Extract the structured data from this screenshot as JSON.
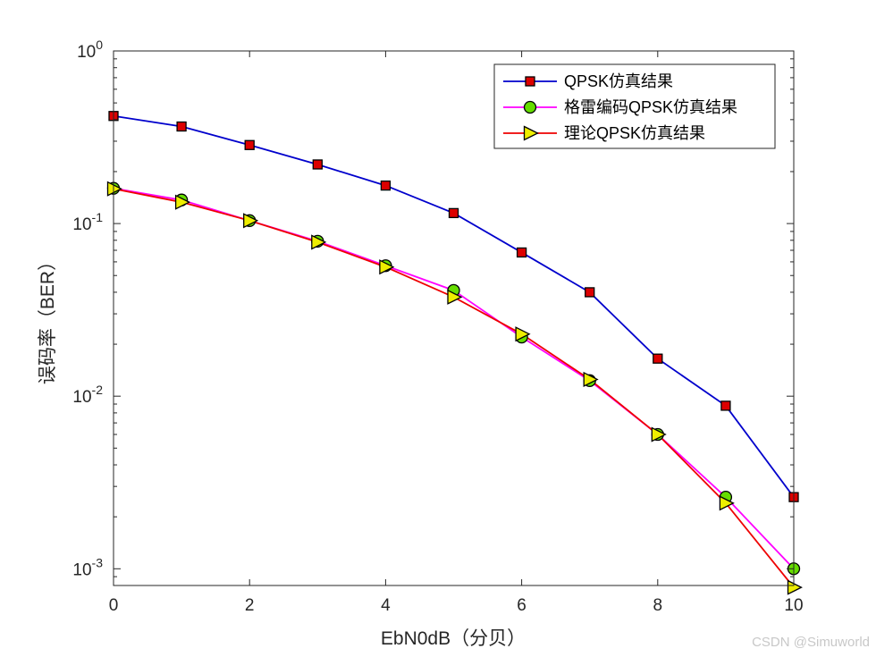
{
  "watermark": "CSDN @Simuworld",
  "chart_data": {
    "type": "line",
    "title": "",
    "xlabel": "EbN0dB（分贝）",
    "ylabel": "误码率（BER）",
    "xlim": [
      0,
      10
    ],
    "ylim": [
      0.0008,
      1
    ],
    "yscale": "log",
    "xticks": [
      0,
      2,
      4,
      6,
      8,
      10
    ],
    "yticks": [
      {
        "value": 1,
        "base": "10",
        "exp": "0"
      },
      {
        "value": 0.1,
        "base": "10",
        "exp": "-1"
      },
      {
        "value": 0.01,
        "base": "10",
        "exp": "-2"
      },
      {
        "value": 0.001,
        "base": "10",
        "exp": "-3"
      }
    ],
    "grid": false,
    "legend_position": "top-right",
    "x": [
      0,
      1,
      2,
      3,
      4,
      5,
      6,
      7,
      8,
      9,
      10
    ],
    "series": [
      {
        "name": "QPSK仿真结果",
        "values": [
          0.42,
          0.365,
          0.285,
          0.22,
          0.166,
          0.115,
          0.068,
          0.04,
          0.0165,
          0.0088,
          0.0026
        ],
        "color": "#0000cc",
        "marker": "square",
        "marker_color": "#dd0000"
      },
      {
        "name": "格雷编码QPSK仿真结果",
        "values": [
          0.16,
          0.137,
          0.104,
          0.079,
          0.057,
          0.041,
          0.022,
          0.0123,
          0.006,
          0.0026,
          0.001
        ],
        "color": "#ff00ff",
        "marker": "circle",
        "marker_color": "#66dd00"
      },
      {
        "name": "理论QPSK仿真结果",
        "values": [
          0.159,
          0.133,
          0.104,
          0.078,
          0.056,
          0.0375,
          0.0229,
          0.0125,
          0.006,
          0.0024,
          0.00078
        ],
        "color": "#ee0000",
        "marker": "triangle-right",
        "marker_color": "#eeee00"
      }
    ]
  }
}
